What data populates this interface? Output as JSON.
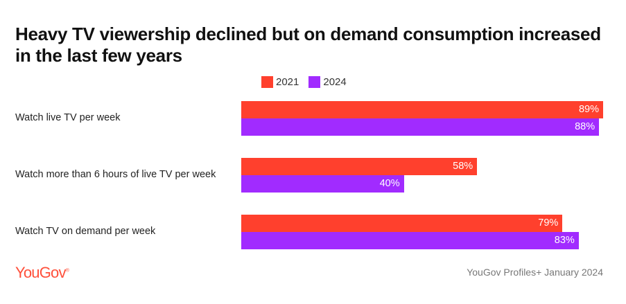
{
  "chart_data": {
    "type": "bar",
    "orientation": "horizontal",
    "title": "Heavy TV viewership declined but on demand consumption increased in the last few years",
    "categories": [
      "Watch live TV per week",
      "Watch more than 6 hours of live TV per week",
      "Watch TV on demand per week"
    ],
    "series": [
      {
        "name": "2021",
        "color": "#ff402d",
        "values": [
          89,
          58,
          79
        ],
        "labels": [
          "89%",
          "58%",
          "79%"
        ]
      },
      {
        "name": "2024",
        "color": "#a12bff",
        "values": [
          88,
          40,
          83
        ],
        "labels": [
          "88%",
          "40%",
          "83%"
        ]
      }
    ],
    "legend": "top",
    "grid": false,
    "xlim": [
      0,
      100
    ]
  },
  "footer": {
    "logo": "YouGov",
    "source": "YouGov Profiles+ January 2024"
  }
}
